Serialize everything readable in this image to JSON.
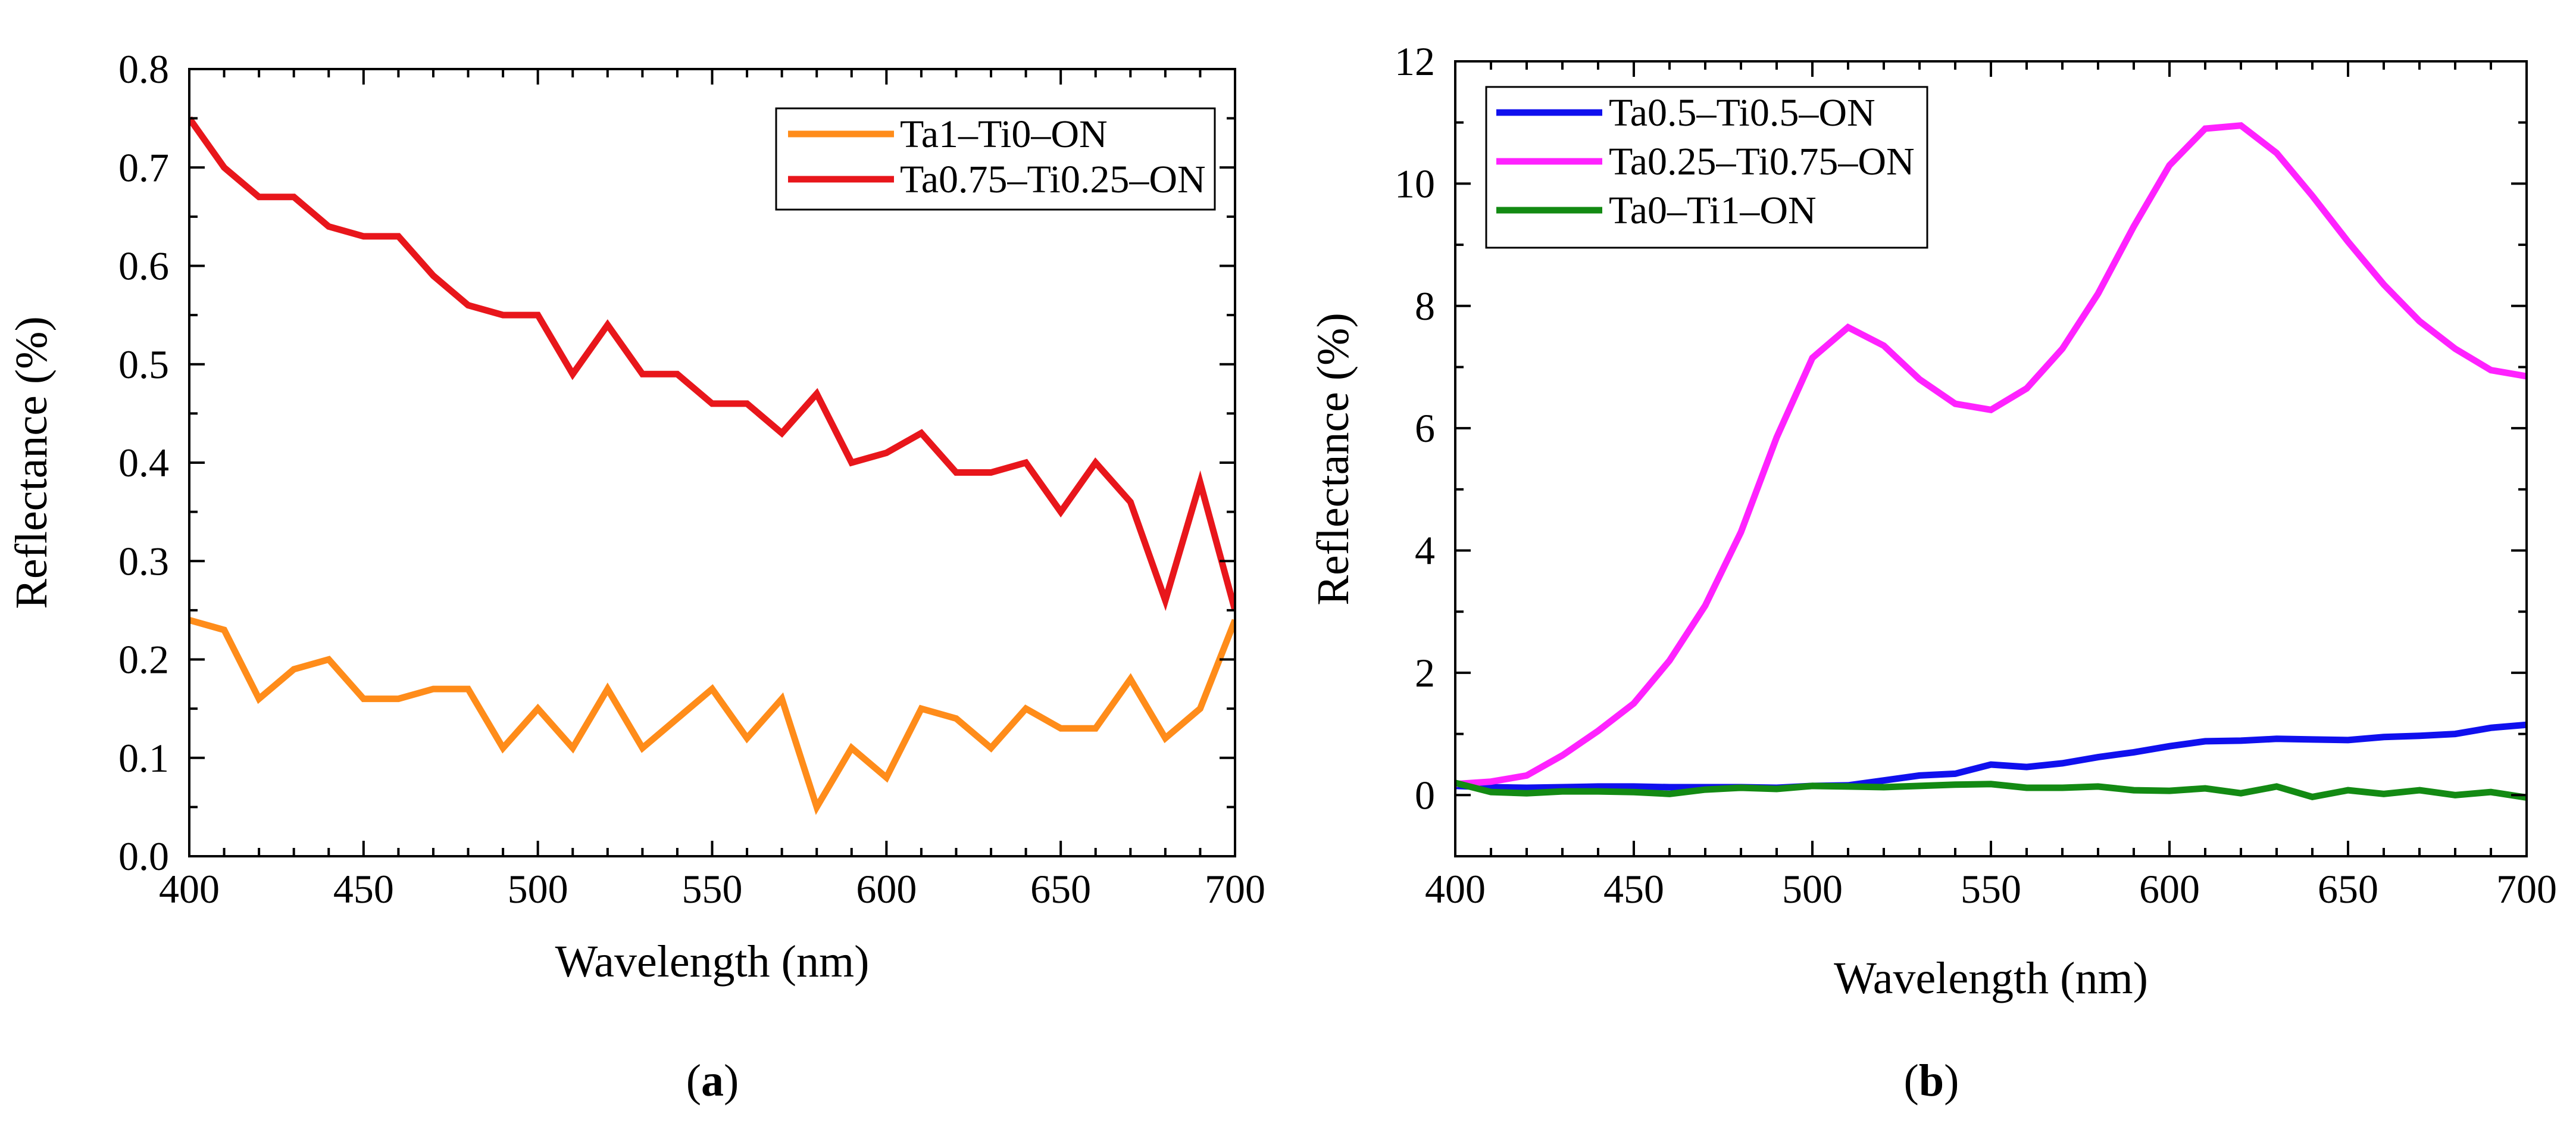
{
  "chart_data": [
    {
      "panel": "a",
      "type": "line",
      "caption_open": "(",
      "caption_letter": "a",
      "caption_close": ")",
      "xlabel": "Wavelength (nm)",
      "ylabel": "Reflectance (%)",
      "xlim": [
        400,
        700
      ],
      "ylim": [
        0,
        0.8
      ],
      "xticks": [
        400,
        450,
        500,
        550,
        600,
        650,
        700
      ],
      "xtick_labels": [
        "400",
        "450",
        "500",
        "550",
        "600",
        "650",
        "700"
      ],
      "yticks": [
        0,
        0.1,
        0.2,
        0.3,
        0.4,
        0.5,
        0.6,
        0.7,
        0.8
      ],
      "ytick_labels": [
        "0.0",
        "0.1",
        "0.2",
        "0.3",
        "0.4",
        "0.5",
        "0.6",
        "0.7",
        "0.8"
      ],
      "legend_position": "top-right",
      "x": [
        400,
        410,
        420,
        430,
        440,
        450,
        460,
        470,
        480,
        490,
        500,
        510,
        520,
        530,
        540,
        550,
        560,
        570,
        580,
        590,
        600,
        610,
        620,
        630,
        640,
        650,
        660,
        670,
        680,
        690,
        700
      ],
      "series": [
        {
          "name": "Ta1–Ti0–ON",
          "color": "#ff8c1a",
          "values": [
            0.24,
            0.23,
            0.16,
            0.19,
            0.2,
            0.16,
            0.16,
            0.17,
            0.17,
            0.11,
            0.15,
            0.11,
            0.17,
            0.11,
            0.14,
            0.17,
            0.12,
            0.16,
            0.05,
            0.11,
            0.08,
            0.15,
            0.14,
            0.11,
            0.15,
            0.13,
            0.13,
            0.18,
            0.12,
            0.15,
            0.24
          ]
        },
        {
          "name": "Ta0.75–Ti0.25–ON",
          "color": "#e8161b",
          "values": [
            0.75,
            0.7,
            0.67,
            0.67,
            0.64,
            0.63,
            0.63,
            0.59,
            0.56,
            0.55,
            0.55,
            0.49,
            0.54,
            0.49,
            0.49,
            0.46,
            0.46,
            0.43,
            0.47,
            0.4,
            0.41,
            0.43,
            0.39,
            0.39,
            0.4,
            0.35,
            0.4,
            0.36,
            0.26,
            0.38,
            0.25
          ]
        }
      ]
    },
    {
      "panel": "b",
      "type": "line",
      "caption_open": "(",
      "caption_letter": "b",
      "caption_close": ")",
      "xlabel": "Wavelength (nm)",
      "ylabel": "Reflectance (%)",
      "xlim": [
        400,
        700
      ],
      "ylim": [
        -1,
        12
      ],
      "xticks": [
        400,
        450,
        500,
        550,
        600,
        650,
        700
      ],
      "xtick_labels": [
        "400",
        "450",
        "500",
        "550",
        "600",
        "650",
        "700"
      ],
      "yticks": [
        0,
        2,
        4,
        6,
        8,
        10,
        12
      ],
      "ytick_labels": [
        "0",
        "2",
        "4",
        "6",
        "8",
        "10",
        "12"
      ],
      "legend_position": "top-left",
      "x": [
        400,
        410,
        420,
        430,
        440,
        450,
        460,
        470,
        480,
        490,
        500,
        510,
        520,
        530,
        540,
        550,
        560,
        570,
        580,
        590,
        600,
        610,
        620,
        630,
        640,
        650,
        660,
        670,
        680,
        690,
        700
      ],
      "series": [
        {
          "name": "Ta0.5–Ti0.5–ON",
          "color": "#1010ee",
          "values": [
            0.15,
            0.13,
            0.12,
            0.13,
            0.14,
            0.14,
            0.13,
            0.13,
            0.13,
            0.12,
            0.15,
            0.16,
            0.24,
            0.32,
            0.35,
            0.5,
            0.46,
            0.52,
            0.62,
            0.7,
            0.8,
            0.88,
            0.89,
            0.92,
            0.91,
            0.9,
            0.95,
            0.97,
            1.0,
            1.1,
            1.15
          ]
        },
        {
          "name": "Ta0.25–Ti0.75–ON",
          "color": "#ff22ff",
          "values": [
            0.18,
            0.22,
            0.32,
            0.65,
            1.05,
            1.5,
            2.2,
            3.1,
            4.3,
            5.85,
            7.15,
            7.65,
            7.35,
            6.8,
            6.4,
            6.3,
            6.65,
            7.3,
            8.2,
            9.3,
            10.3,
            10.9,
            10.95,
            10.5,
            9.8,
            9.05,
            8.35,
            7.75,
            7.3,
            6.95,
            6.85
          ]
        },
        {
          "name": "Ta0–Ti1–ON",
          "color": "#138a13",
          "values": [
            0.2,
            0.05,
            0.03,
            0.06,
            0.06,
            0.05,
            0.02,
            0.09,
            0.12,
            0.1,
            0.15,
            0.14,
            0.13,
            0.15,
            0.17,
            0.18,
            0.12,
            0.12,
            0.14,
            0.08,
            0.07,
            0.11,
            0.03,
            0.14,
            -0.03,
            0.08,
            0.02,
            0.08,
            0.0,
            0.05,
            -0.04
          ]
        }
      ]
    }
  ]
}
